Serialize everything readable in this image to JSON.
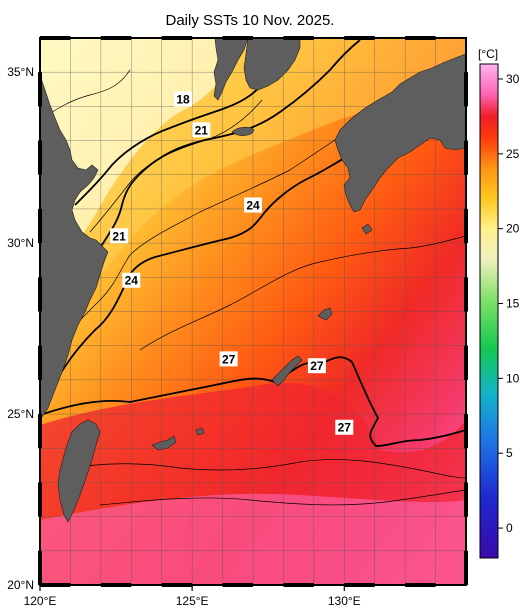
{
  "title": "Daily SSTs 10 Nov. 2025.",
  "unit": "[°C]",
  "map": {
    "lon_range": [
      120,
      134
    ],
    "lat_range": [
      20,
      36
    ],
    "lon_ticks": [
      {
        "value": 120,
        "label": "120°E"
      },
      {
        "value": 125,
        "label": "125°E"
      },
      {
        "value": 130,
        "label": "130°E"
      }
    ],
    "lat_ticks": [
      {
        "value": 35,
        "label": "35°N"
      },
      {
        "value": 30,
        "label": "30°N"
      },
      {
        "value": 25,
        "label": "25°N"
      },
      {
        "value": 20,
        "label": "20°N"
      }
    ],
    "grid": true,
    "grid_step_deg": 1,
    "land_color": "#5e5e5e"
  },
  "contour_labels": [
    {
      "text": "18",
      "lon": 124.7,
      "lat": 34.2
    },
    {
      "text": "21",
      "lon": 125.3,
      "lat": 33.3
    },
    {
      "text": "21",
      "lon": 122.6,
      "lat": 30.2
    },
    {
      "text": "24",
      "lon": 127.0,
      "lat": 31.1
    },
    {
      "text": "24",
      "lon": 123.0,
      "lat": 28.9
    },
    {
      "text": "27",
      "lon": 126.2,
      "lat": 26.6
    },
    {
      "text": "27",
      "lon": 129.1,
      "lat": 26.4
    },
    {
      "text": "27",
      "lon": 130.0,
      "lat": 24.6
    }
  ],
  "colorbar": {
    "ticks": [
      "30",
      "25",
      "20",
      "15",
      "10",
      "5",
      "0"
    ],
    "tick_values": [
      30,
      25,
      20,
      15,
      10,
      5,
      0
    ],
    "range": [
      -2,
      31
    ],
    "stops": [
      {
        "value": -2,
        "color": "#3a0aa8"
      },
      {
        "value": 2,
        "color": "#1e28d0"
      },
      {
        "value": 6,
        "color": "#1e78e6"
      },
      {
        "value": 9,
        "color": "#14b4c8"
      },
      {
        "value": 12,
        "color": "#14c850"
      },
      {
        "value": 15,
        "color": "#78e064"
      },
      {
        "value": 18,
        "color": "#f0f0c0"
      },
      {
        "value": 20,
        "color": "#fff08c"
      },
      {
        "value": 22,
        "color": "#ffc81e"
      },
      {
        "value": 24,
        "color": "#ff9614"
      },
      {
        "value": 26,
        "color": "#ff3c0a"
      },
      {
        "value": 27.5,
        "color": "#f01e28"
      },
      {
        "value": 29,
        "color": "#ff64b4"
      },
      {
        "value": 31,
        "color": "#ffb4f0"
      }
    ]
  }
}
